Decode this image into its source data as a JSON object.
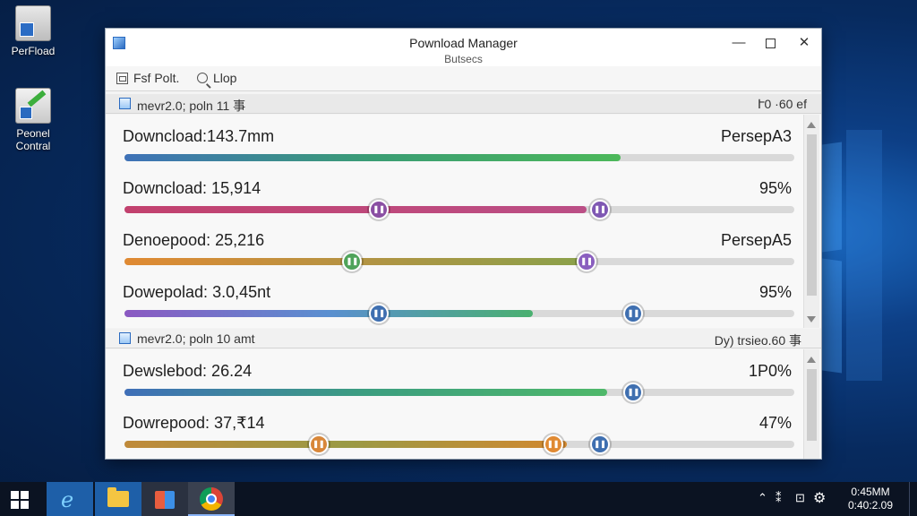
{
  "desktop": {
    "icons": [
      {
        "label": "PerFload",
        "icon": "perfload-icon"
      },
      {
        "label": "Peonel\nContral",
        "icon": "control-panel-icon"
      }
    ]
  },
  "window": {
    "title": "Pownload Manager",
    "subtitle": "Butsecs",
    "controls": {
      "minimize": "—",
      "maximize": "",
      "close": "✕"
    }
  },
  "toolbar": {
    "pref_label": "Fsf Polt.",
    "loop_label": "Llop"
  },
  "groups": [
    {
      "header_left": "mevr2.0;  poln 11 事",
      "header_right": "Ւ0 ·60 ef",
      "items": [
        {
          "label": "Downcload:143.7mm",
          "status": "PersepA3",
          "progress": 0.74,
          "colors": [
            "#3f72b8",
            "#3a9d74",
            "#4cb85a"
          ],
          "knobs": []
        },
        {
          "label": "Downcload: 15,914",
          "status": "95%",
          "progress": 0.69,
          "colors": [
            "#c2416e",
            "#bb4f86"
          ],
          "knobs": [
            {
              "pos": 0.38,
              "color": "#8a4fa3"
            },
            {
              "pos": 0.71,
              "color": "#7f58b3"
            }
          ]
        },
        {
          "label": "Denoepood: 25,216",
          "status": "PersepA5",
          "progress": 0.69,
          "colors": [
            "#e08a33",
            "#b49343",
            "#8aa14b"
          ],
          "knobs": [
            {
              "pos": 0.34,
              "color": "#4fa35a"
            },
            {
              "pos": 0.69,
              "color": "#8a5fbf"
            }
          ]
        },
        {
          "label": "Dowepolad: 3.0,45nt",
          "status": "95%",
          "progress": 0.61,
          "colors": [
            "#8b59c2",
            "#5a8fd0",
            "#4ab070"
          ],
          "knobs": [
            {
              "pos": 0.38,
              "color": "#3f6fb0"
            },
            {
              "pos": 0.76,
              "color": "#3f6fb0"
            }
          ]
        }
      ]
    },
    {
      "header_left": "mevr2.0;  poln 10 amt",
      "header_right": "Dy)  trsieo.60 事",
      "items": [
        {
          "label": "Dewslebod: 26.24",
          "status": "1P0%",
          "progress": 0.72,
          "colors": [
            "#3f6fb8",
            "#3c9e80",
            "#4fb86a"
          ],
          "knobs": [
            {
              "pos": 0.76,
              "color": "#3f6fb0"
            }
          ]
        },
        {
          "label": "Dowrepood: 37,₹14",
          "status": "47%",
          "progress": 0.66,
          "colors": [
            "#c08a3a",
            "#9a9a45",
            "#d2882f"
          ],
          "knobs": [
            {
              "pos": 0.29,
              "color": "#d8873a"
            },
            {
              "pos": 0.64,
              "color": "#e08a33"
            },
            {
              "pos": 0.71,
              "color": "#3f6fb0"
            }
          ]
        }
      ]
    }
  ],
  "taskbar": {
    "apps": [
      "internet-explorer-icon",
      "file-explorer-icon",
      "store-icon",
      "chrome-icon"
    ],
    "tray_glyphs": {
      "up": "⌃",
      "net": "⁑",
      "vol": "⊡",
      "gear": "⚙"
    },
    "clock_time": "0:45MM",
    "clock_date": "0:40:2.09"
  }
}
